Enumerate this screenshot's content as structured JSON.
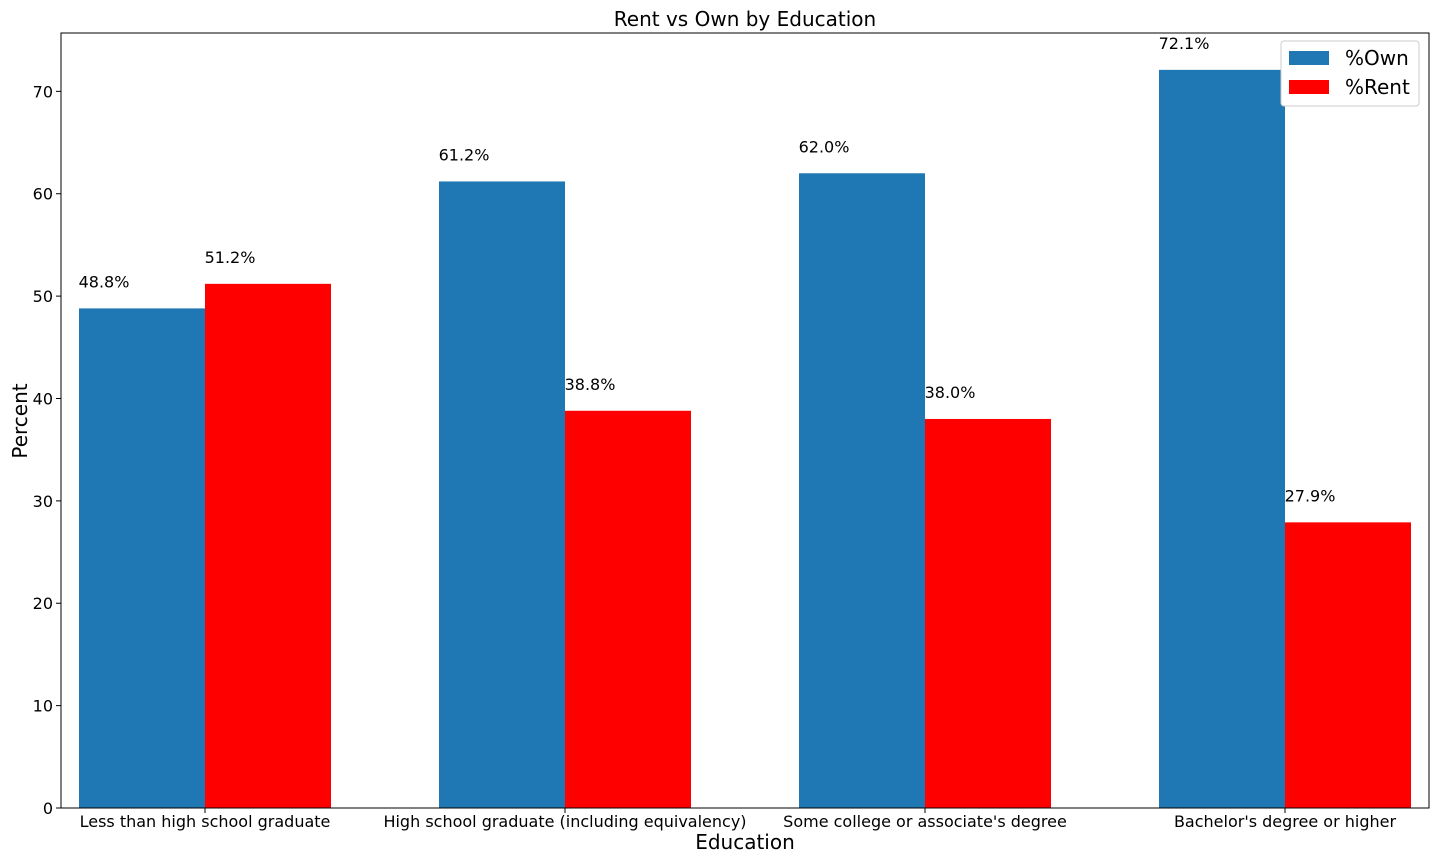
{
  "chart_data": {
    "type": "bar",
    "title": "Rent vs Own by Education",
    "xlabel": "Education",
    "ylabel": "Percent",
    "categories": [
      "Less than high school graduate",
      "High school graduate (including equivalency)",
      "Some college or associate's degree",
      "Bachelor's degree or higher"
    ],
    "series": [
      {
        "name": "%Own",
        "color": "#1f77b4",
        "values": [
          48.8,
          61.2,
          62.0,
          72.1
        ],
        "labels": [
          "48.8%",
          "61.2%",
          "62.0%",
          "72.1%"
        ]
      },
      {
        "name": "%Rent",
        "color": "#ff0000",
        "values": [
          51.2,
          38.8,
          38.0,
          27.9
        ],
        "labels": [
          "51.2%",
          "38.8%",
          "38.0%",
          "27.9%"
        ]
      }
    ],
    "ylim": [
      0,
      75.7
    ],
    "yticks": [
      0,
      10,
      20,
      30,
      40,
      50,
      60,
      70
    ],
    "grid": false,
    "legend_position": "top-right"
  }
}
